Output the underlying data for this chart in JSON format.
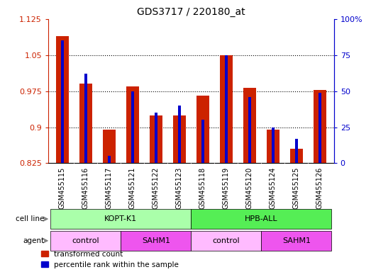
{
  "title": "GDS3717 / 220180_at",
  "samples": [
    "GSM455115",
    "GSM455116",
    "GSM455117",
    "GSM455121",
    "GSM455122",
    "GSM455123",
    "GSM455118",
    "GSM455119",
    "GSM455120",
    "GSM455124",
    "GSM455125",
    "GSM455126"
  ],
  "red_values": [
    1.09,
    0.99,
    0.895,
    0.985,
    0.925,
    0.925,
    0.965,
    1.05,
    0.982,
    0.895,
    0.855,
    0.978
  ],
  "blue_values_pct": [
    85,
    62,
    5,
    50,
    35,
    40,
    30,
    75,
    46,
    25,
    17,
    49
  ],
  "ymin": 0.825,
  "ymax": 1.125,
  "y_ticks": [
    0.825,
    0.9,
    0.975,
    1.05,
    1.125
  ],
  "right_yticks": [
    0,
    25,
    50,
    75,
    100
  ],
  "bar_color": "#cc2200",
  "blue_color": "#0000cc",
  "cell_line_data": [
    {
      "start": 0,
      "end": 6,
      "label": "KOPT-K1",
      "color": "#aaffaa"
    },
    {
      "start": 6,
      "end": 12,
      "label": "HPB-ALL",
      "color": "#55ee55"
    }
  ],
  "agent_data": [
    {
      "start": 0,
      "end": 3,
      "label": "control",
      "color": "#ffbbff"
    },
    {
      "start": 3,
      "end": 6,
      "label": "SAHM1",
      "color": "#ee55ee"
    },
    {
      "start": 6,
      "end": 9,
      "label": "control",
      "color": "#ffbbff"
    },
    {
      "start": 9,
      "end": 12,
      "label": "SAHM1",
      "color": "#ee55ee"
    }
  ],
  "legend_red": "transformed count",
  "legend_blue": "percentile rank within the sample",
  "bar_width": 0.55,
  "blue_bar_width": 0.13,
  "axis_label_color_left": "#cc2200",
  "axis_label_color_right": "#0000cc",
  "sample_bg_color": "#cccccc",
  "left_label_color": "#555555"
}
